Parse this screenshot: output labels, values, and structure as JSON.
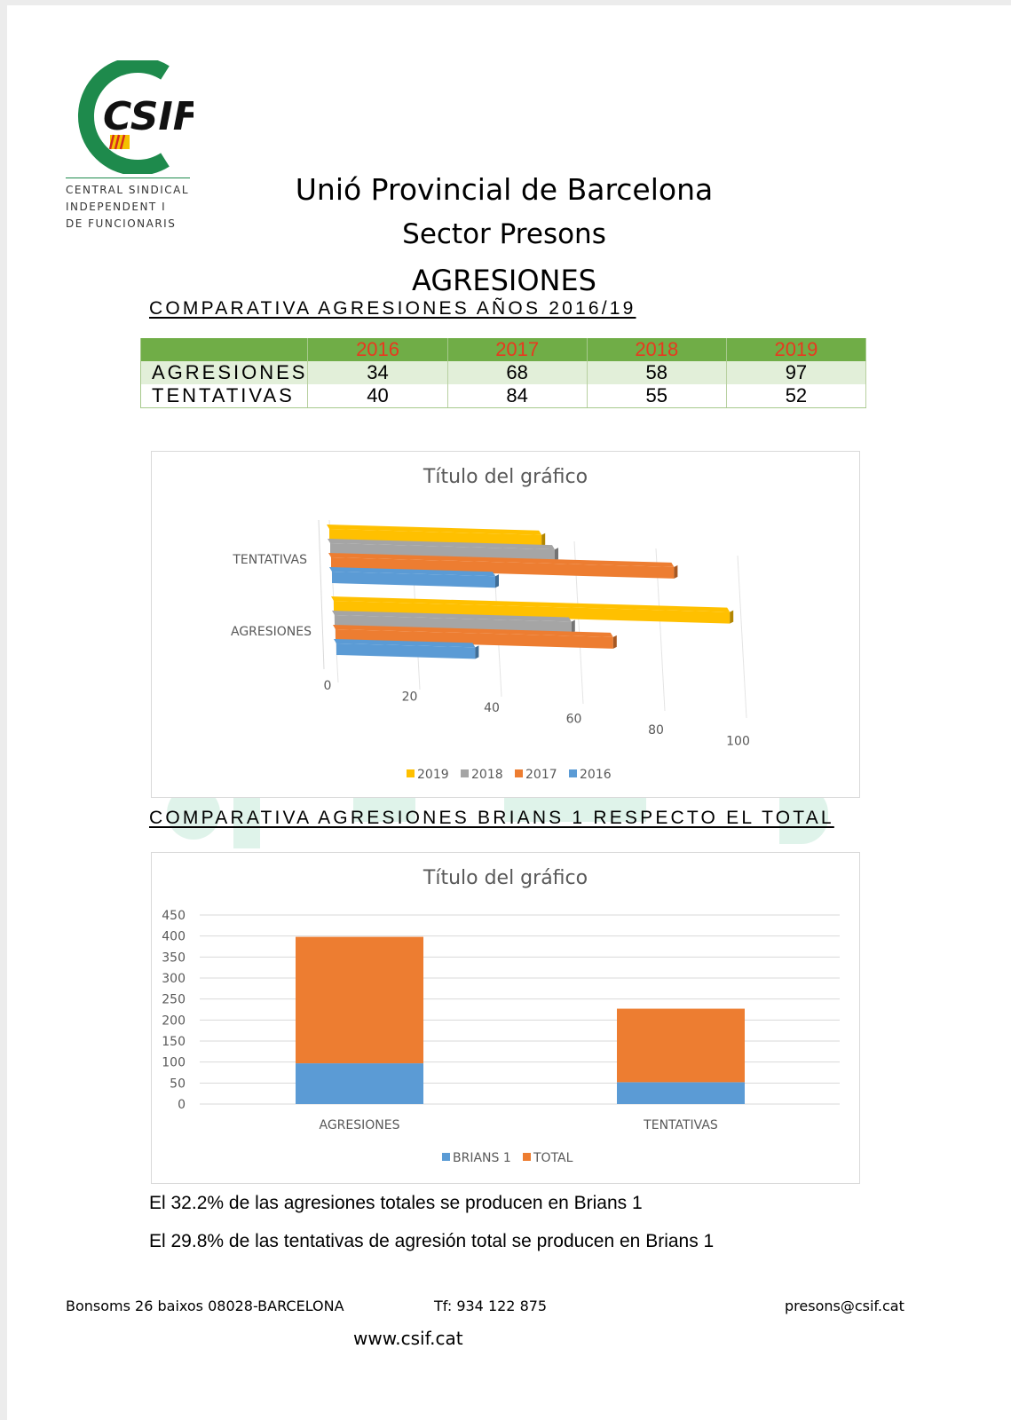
{
  "header": {
    "logo_text": "CSIF",
    "logo_caption": [
      "CENTRAL SINDICAL",
      "INDEPENDENT I",
      "DE FUNCIONARIS"
    ],
    "line1": "Unió Provincial de Barcelona",
    "line2": "Sector Presons",
    "line3": "AGRESIONES"
  },
  "colors": {
    "y2019": "#ffc000",
    "y2018": "#a5a5a5",
    "y2017": "#ed7d31",
    "y2016": "#5b9bd5",
    "brians": "#5b9bd5",
    "total": "#ed7d31",
    "table_header": "#70ad47",
    "table_header_text": "#e8391f"
  },
  "section1": {
    "title": "COMPARATIVA AGRESIONES AÑOS 2016/19"
  },
  "table": {
    "years": [
      "2016",
      "2017",
      "2018",
      "2019"
    ],
    "rows": [
      {
        "label": "AGRESIONES",
        "values": [
          "34",
          "68",
          "58",
          "97"
        ]
      },
      {
        "label": "TENTATIVAS",
        "values": [
          "40",
          "84",
          "55",
          "52"
        ]
      }
    ]
  },
  "chart_data": [
    {
      "type": "bar",
      "orientation": "horizontal",
      "style": "3d",
      "title": "Título del gráfico",
      "categories": [
        "AGRESIONES",
        "TENTATIVAS"
      ],
      "series": [
        {
          "name": "2019",
          "values": [
            97,
            52
          ]
        },
        {
          "name": "2018",
          "values": [
            58,
            55
          ]
        },
        {
          "name": "2017",
          "values": [
            68,
            84
          ]
        },
        {
          "name": "2016",
          "values": [
            34,
            40
          ]
        }
      ],
      "xlim": [
        0,
        100
      ],
      "xticks": [
        "0",
        "20",
        "40",
        "60",
        "80",
        "100"
      ],
      "legend": "bottom",
      "legend_items": [
        "2019",
        "2018",
        "2017",
        "2016"
      ]
    },
    {
      "type": "bar",
      "stacked": true,
      "title": "Título del gráfico",
      "categories": [
        "AGRESIONES",
        "TENTATIVAS"
      ],
      "series": [
        {
          "name": "BRIANS 1",
          "values": [
            97,
            52
          ]
        },
        {
          "name": "TOTAL",
          "values": [
            301,
            175
          ]
        }
      ],
      "ylim": [
        0,
        450
      ],
      "yticks": [
        "0",
        "50",
        "100",
        "150",
        "200",
        "250",
        "300",
        "350",
        "400",
        "450"
      ],
      "grid": true,
      "legend": "bottom",
      "legend_items": [
        "BRIANS 1",
        "TOTAL"
      ]
    }
  ],
  "section2": {
    "title": "COMPARATIVA AGRESIONES BRIANS 1 RESPECTO EL TOTAL"
  },
  "notes": [
    "El 32.2% de las agresiones totales se producen en Brians 1",
    "El 29.8% de las tentativas de agresión total se producen en Brians 1"
  ],
  "footer": {
    "address": "Bonsoms 26 baixos   08028-BARCELONA",
    "phone": "Tf: 934 122 875",
    "email": "presons@csif.cat",
    "web": "www.csif.cat"
  }
}
